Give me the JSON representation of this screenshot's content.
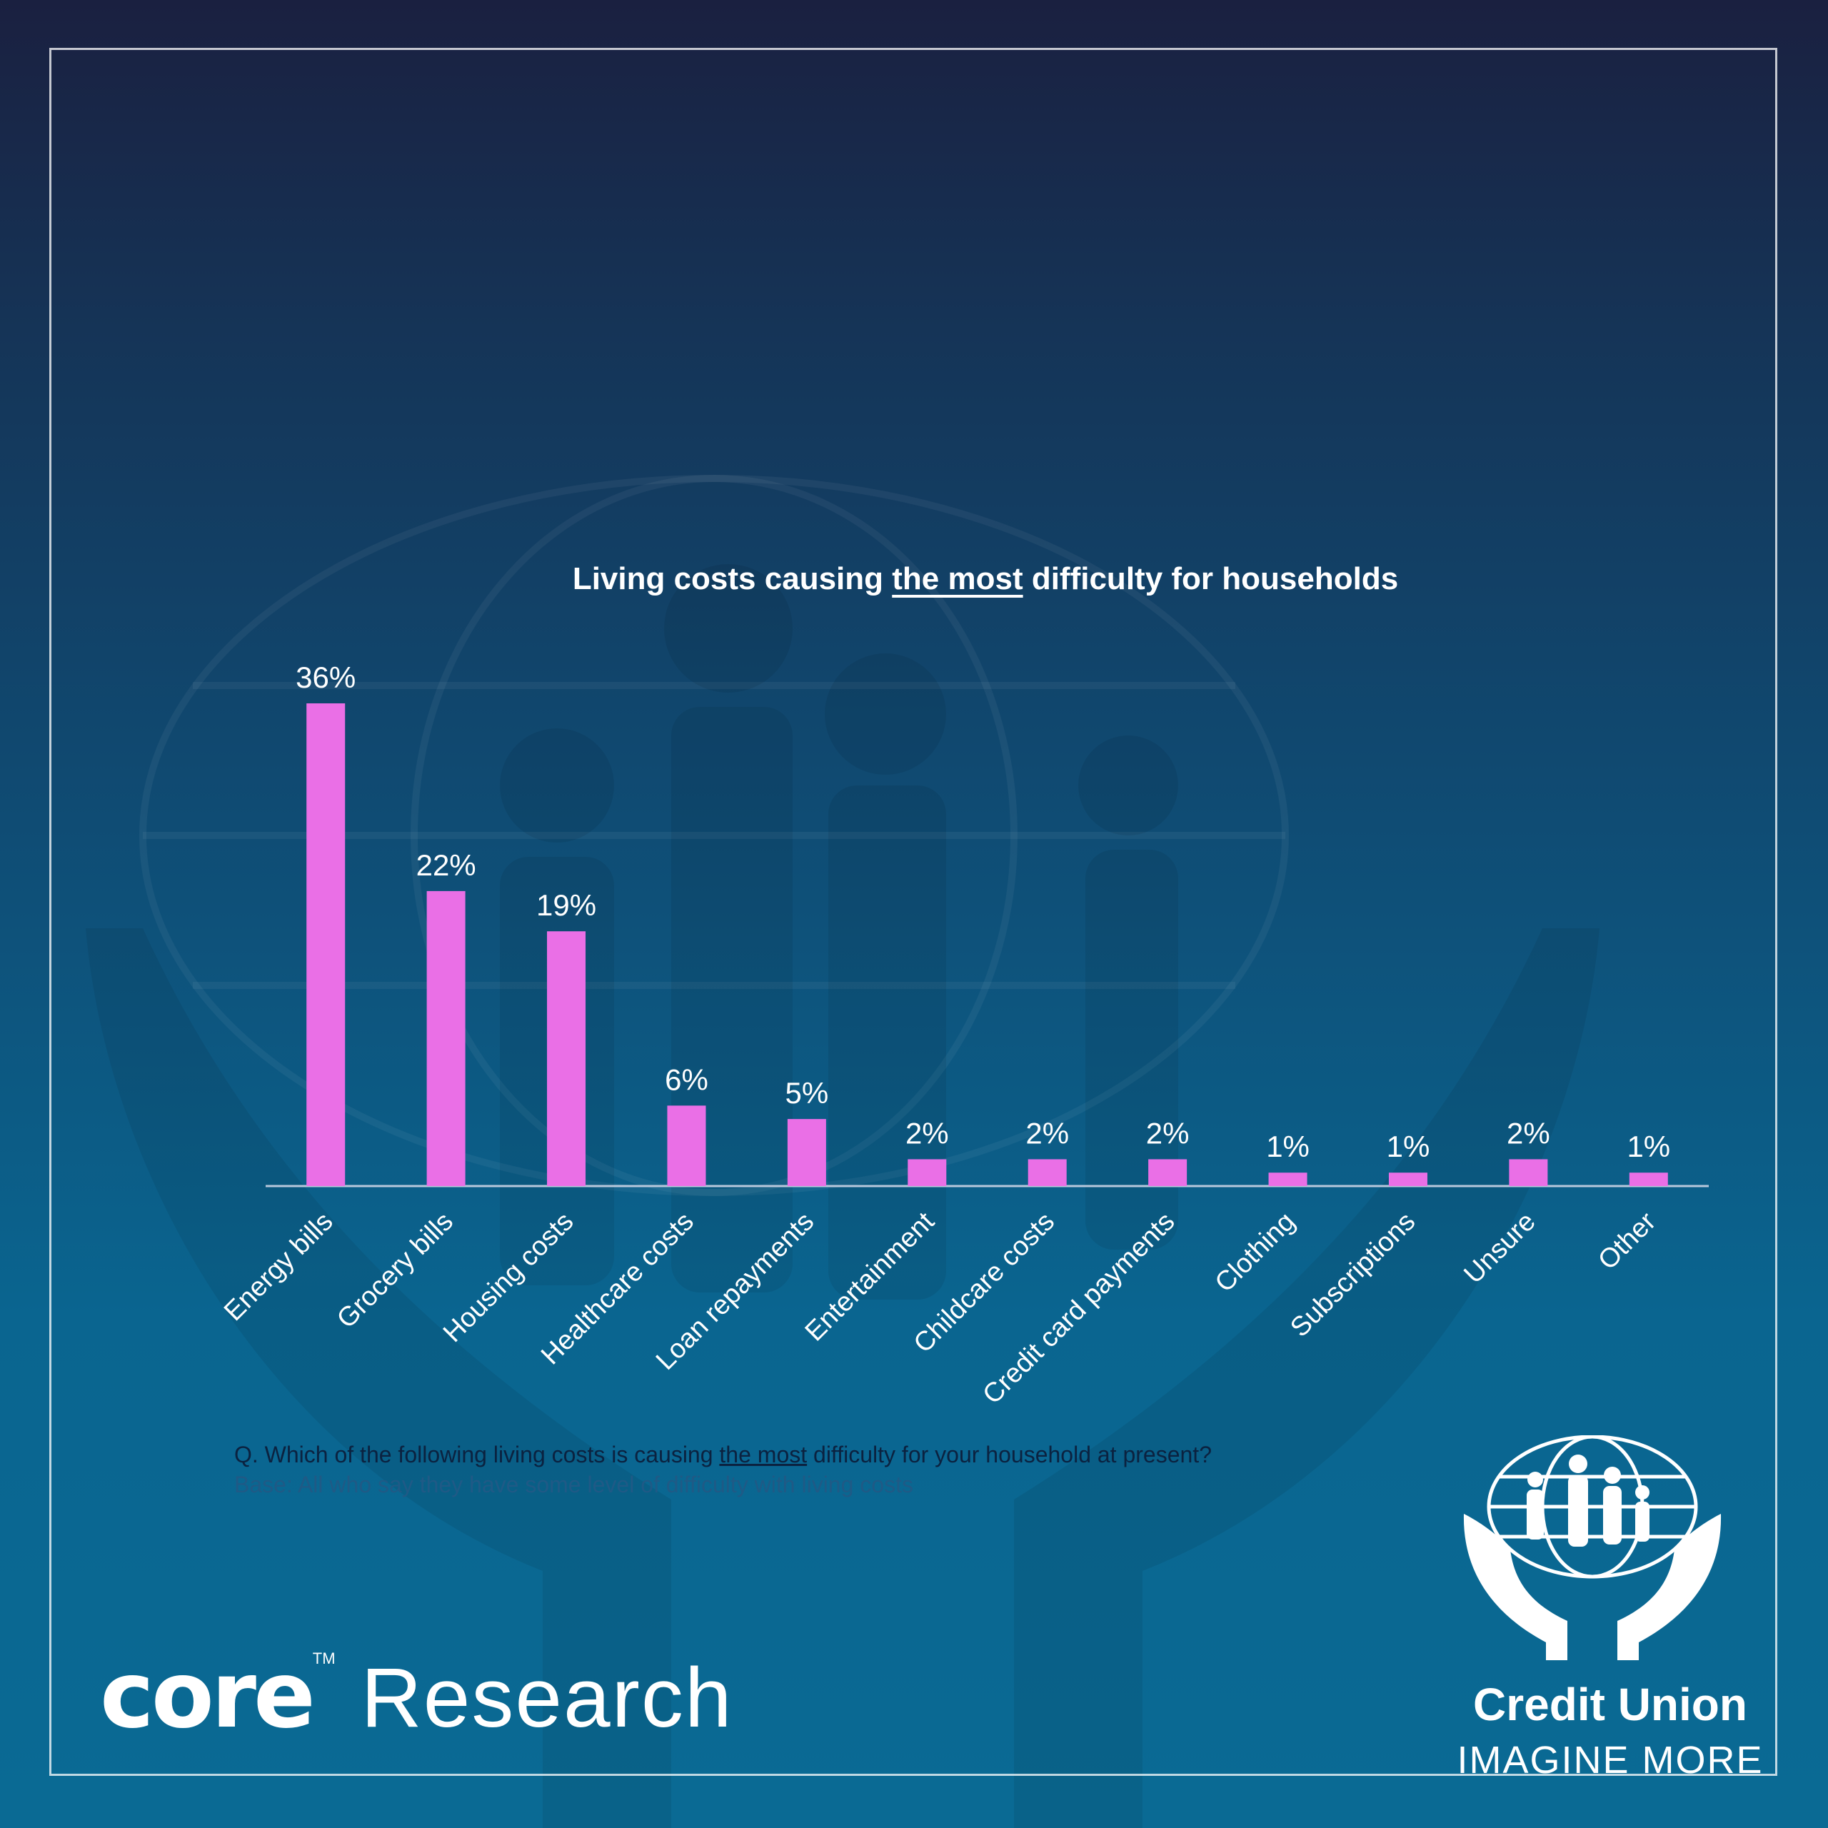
{
  "chart_data": {
    "type": "bar",
    "title": {
      "before": "Living costs causing ",
      "emphasis": "the most",
      "after": " difficulty for households"
    },
    "categories": [
      "Energy bills",
      "Grocery bills",
      "Housing costs",
      "Healthcare costs",
      "Loan repayments",
      "Entertainment",
      "Childcare costs",
      "Credit card payments",
      "Clothing",
      "Subscriptions",
      "Unsure",
      "Other"
    ],
    "values": [
      36,
      22,
      19,
      6,
      5,
      2,
      2,
      2,
      1,
      1,
      2,
      1
    ],
    "value_labels": [
      "36%",
      "22%",
      "19%",
      "6%",
      "5%",
      "2%",
      "2%",
      "2%",
      "1%",
      "1%",
      "2%",
      "1%"
    ],
    "xlabel": "",
    "ylabel": "",
    "ylim": [
      0,
      36
    ],
    "grid": false,
    "legend": "none",
    "colors": {
      "bar": "#ea6fe6",
      "axis": "#b8c8dc",
      "text": "#ffffff"
    }
  },
  "footnote": {
    "question_before": "Q. Which of the following living costs is causing ",
    "question_emphasis": "the most",
    "question_after": " difficulty for your household at present?",
    "base": "Base: All who say they have some level of difficulty with living costs"
  },
  "branding": {
    "core_word": "core",
    "core_tm": "TM",
    "research_word": "Research",
    "credit_union_name": "Credit Union",
    "credit_union_tagline": "IMAGINE MORE",
    "logo_icon": "globe-family-hands-icon"
  }
}
